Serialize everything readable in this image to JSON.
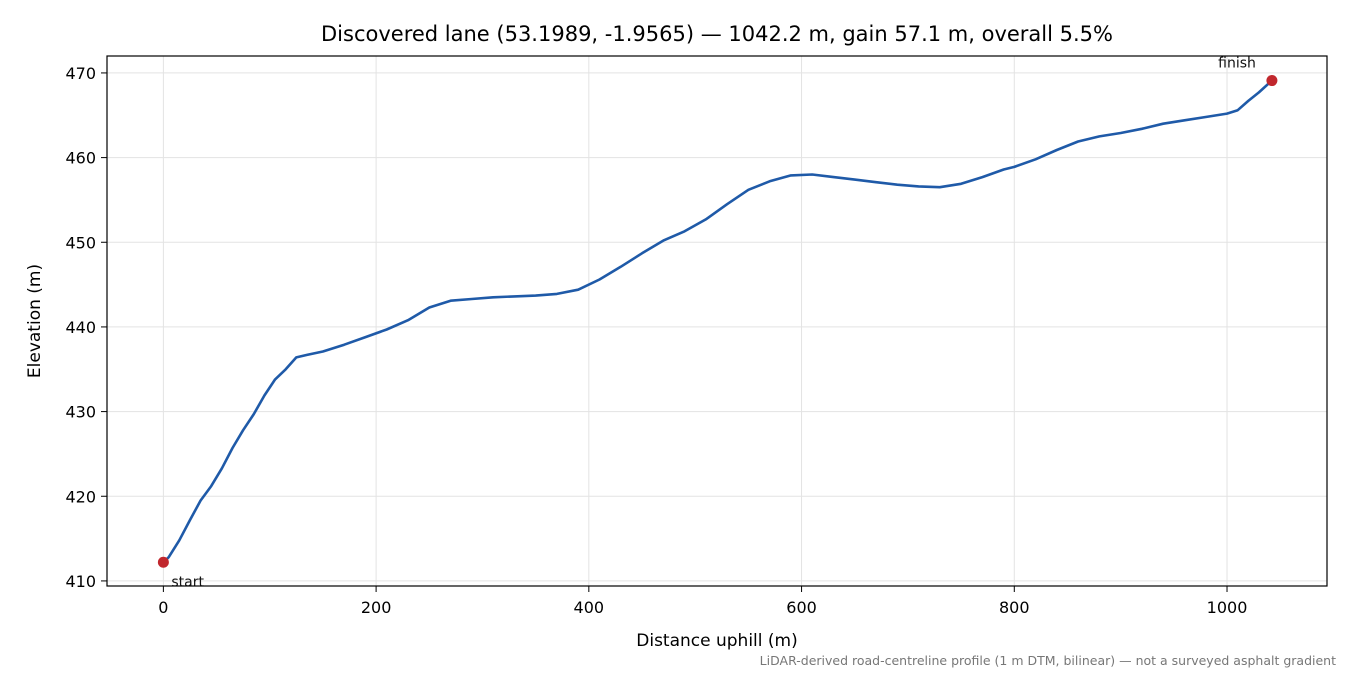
{
  "chart_data": {
    "type": "line",
    "title": "Discovered lane (53.1989, -1.9565) — 1042.2 m, gain 57.1 m, overall 5.5%",
    "xlabel": "Distance uphill (m)",
    "ylabel": "Elevation (m)",
    "xlim": [
      -53,
      1094
    ],
    "ylim": [
      409.4,
      472.0
    ],
    "xticks": [
      0,
      200,
      400,
      600,
      800,
      1000
    ],
    "yticks": [
      410,
      420,
      430,
      440,
      450,
      460,
      470
    ],
    "grid": true,
    "footnote": "LiDAR-derived road-centreline profile (1 m DTM, bilinear) — not a surveyed asphalt gradient",
    "series": [
      {
        "color": "#1f5aa8",
        "x": [
          0,
          5,
          15,
          25,
          35,
          45,
          55,
          65,
          75,
          85,
          95,
          105,
          115,
          125,
          135,
          150,
          170,
          190,
          210,
          230,
          250,
          270,
          290,
          310,
          330,
          350,
          370,
          390,
          410,
          430,
          450,
          470,
          490,
          510,
          530,
          550,
          570,
          590,
          610,
          630,
          650,
          670,
          690,
          710,
          730,
          750,
          770,
          790,
          800,
          820,
          840,
          860,
          880,
          900,
          920,
          940,
          960,
          980,
          1000,
          1010,
          1020,
          1030,
          1042.2
        ],
        "y": [
          412.2,
          412.8,
          414.8,
          417.2,
          419.5,
          421.2,
          423.3,
          425.7,
          427.8,
          429.7,
          431.9,
          433.8,
          435.0,
          436.4,
          436.7,
          437.1,
          437.9,
          438.8,
          439.7,
          440.8,
          442.3,
          443.1,
          443.3,
          443.5,
          443.6,
          443.7,
          443.9,
          444.4,
          445.6,
          447.1,
          448.7,
          450.2,
          451.3,
          452.7,
          454.5,
          456.2,
          457.2,
          457.9,
          458.0,
          457.7,
          457.4,
          457.1,
          456.8,
          456.6,
          456.5,
          456.9,
          457.7,
          458.6,
          458.9,
          459.8,
          460.9,
          461.9,
          462.5,
          462.9,
          463.4,
          464.0,
          464.4,
          464.8,
          465.2,
          465.6,
          466.7,
          467.7,
          469.1
        ]
      }
    ],
    "markers": [
      {
        "label": "start",
        "x": 0,
        "y": 412.2,
        "color": "#c1272d"
      },
      {
        "label": "finish",
        "x": 1042.2,
        "y": 469.1,
        "color": "#c1272d"
      }
    ]
  }
}
